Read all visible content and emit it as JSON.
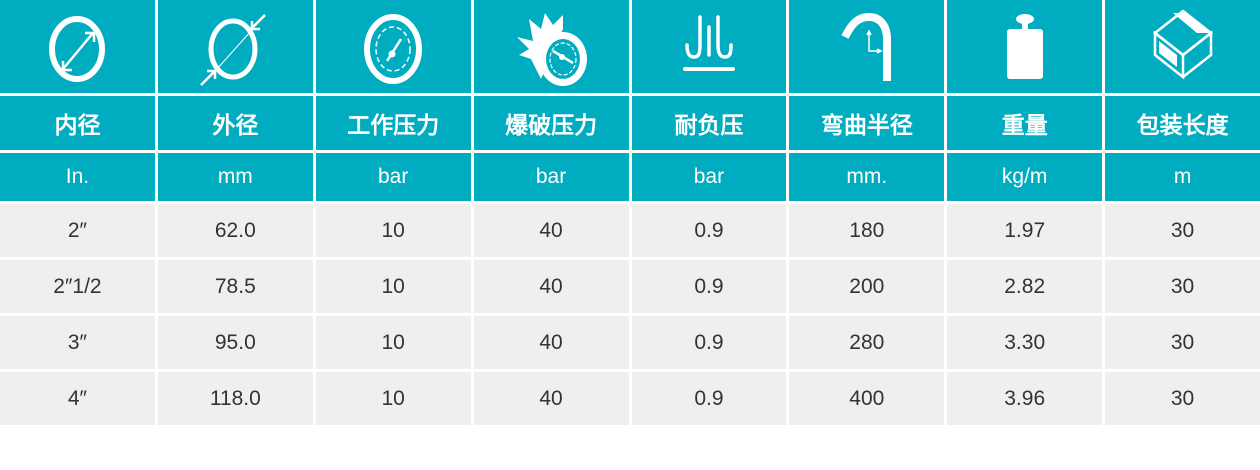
{
  "accent_color": "#00adc0",
  "row_color": "#efefef",
  "icons": [
    "inner-diameter-icon",
    "outer-diameter-icon",
    "working-pressure-gauge-icon",
    "burst-pressure-icon",
    "vacuum-icon",
    "bend-radius-icon",
    "weight-icon",
    "package-box-icon"
  ],
  "headers": [
    "内径",
    "外径",
    "工作压力",
    "爆破压力",
    "耐负压",
    "弯曲半径",
    "重量",
    "包装长度"
  ],
  "units": [
    "In.",
    "mm",
    "bar",
    "bar",
    "bar",
    "mm.",
    "kg/m",
    "m"
  ],
  "rows": [
    [
      "2″",
      "62.0",
      "10",
      "40",
      "0.9",
      "180",
      "1.97",
      "30"
    ],
    [
      "2″1/2",
      "78.5",
      "10",
      "40",
      "0.9",
      "200",
      "2.82",
      "30"
    ],
    [
      "3″",
      "95.0",
      "10",
      "40",
      "0.9",
      "280",
      "3.30",
      "30"
    ],
    [
      "4″",
      "118.0",
      "10",
      "40",
      "0.9",
      "400",
      "3.96",
      "30"
    ]
  ]
}
